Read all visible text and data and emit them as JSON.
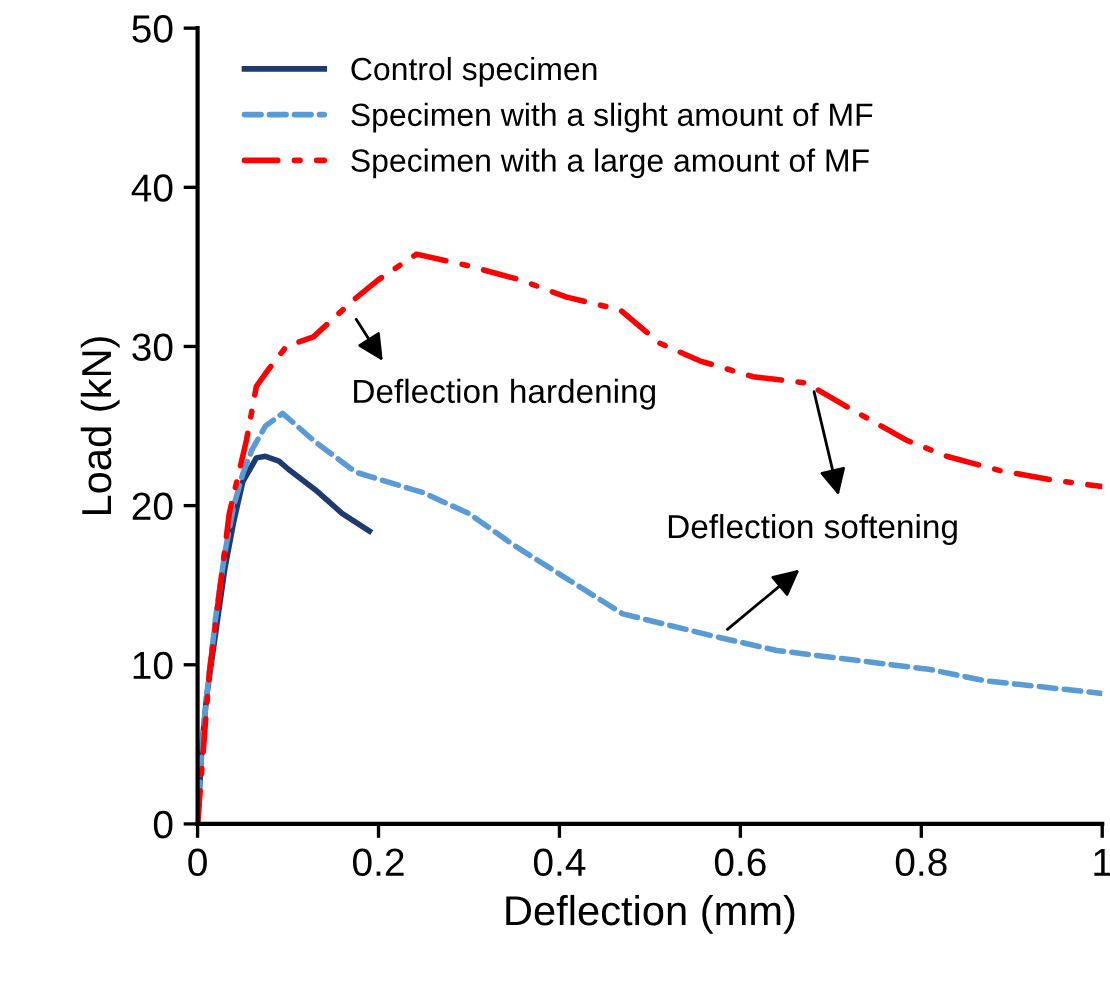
{
  "chart_data": {
    "type": "line",
    "xlabel": "Deflection (mm)",
    "ylabel": "Load (kN)",
    "xlim": [
      0,
      1
    ],
    "ylim": [
      0,
      50
    ],
    "xticks": [
      0,
      0.2,
      0.4,
      0.6,
      0.8,
      1
    ],
    "yticks": [
      0,
      10,
      20,
      30,
      40,
      50
    ],
    "grid": false,
    "legend": "top left",
    "series": [
      {
        "name": "Control specimen",
        "color": "#1f3a6e",
        "line_style": "solid",
        "x": [
          0,
          0.005,
          0.01,
          0.02,
          0.03,
          0.04,
          0.05,
          0.065,
          0.075,
          0.09,
          0.1,
          0.13,
          0.16,
          0.19
        ],
        "values": [
          0,
          5,
          8,
          12,
          16,
          19,
          21.5,
          23,
          23.1,
          22.8,
          22.3,
          21,
          19.5,
          18.4
        ]
      },
      {
        "name": "Specimen with a slight amount of MF",
        "color": "#5b9bd5",
        "line_style": "dashed",
        "x": [
          0,
          0.005,
          0.01,
          0.02,
          0.03,
          0.04,
          0.05,
          0.06,
          0.075,
          0.094,
          0.13,
          0.175,
          0.25,
          0.3,
          0.35,
          0.4,
          0.47,
          0.57,
          0.64,
          0.81,
          0.87,
          1
        ],
        "values": [
          0,
          5,
          8,
          13,
          17,
          20,
          22,
          23.5,
          25,
          25.8,
          24,
          22.1,
          20.8,
          19.5,
          17.5,
          15.7,
          13.2,
          11.8,
          10.9,
          9.7,
          9.0,
          8.2
        ]
      },
      {
        "name": "Specimen with a large amount of MF",
        "color": "#ff0000",
        "line_style": "dashdot",
        "x": [
          0,
          0.013,
          0.035,
          0.054,
          0.065,
          0.075,
          0.098,
          0.128,
          0.172,
          0.2,
          0.242,
          0.297,
          0.356,
          0.408,
          0.467,
          0.511,
          0.555,
          0.614,
          0.673,
          0.718,
          0.784,
          0.828,
          0.887,
          0.946,
          1
        ],
        "values": [
          0,
          9.5,
          19.5,
          24.1,
          27.5,
          28.3,
          30,
          30.6,
          32.9,
          34.2,
          35.8,
          35.1,
          34.2,
          33.1,
          32.3,
          30.2,
          29.1,
          28.1,
          27.7,
          26.2,
          24.1,
          23.1,
          22.2,
          21.6,
          21.2
        ]
      }
    ],
    "annotations": [
      "Deflection hardening",
      "Deflection softening"
    ]
  }
}
